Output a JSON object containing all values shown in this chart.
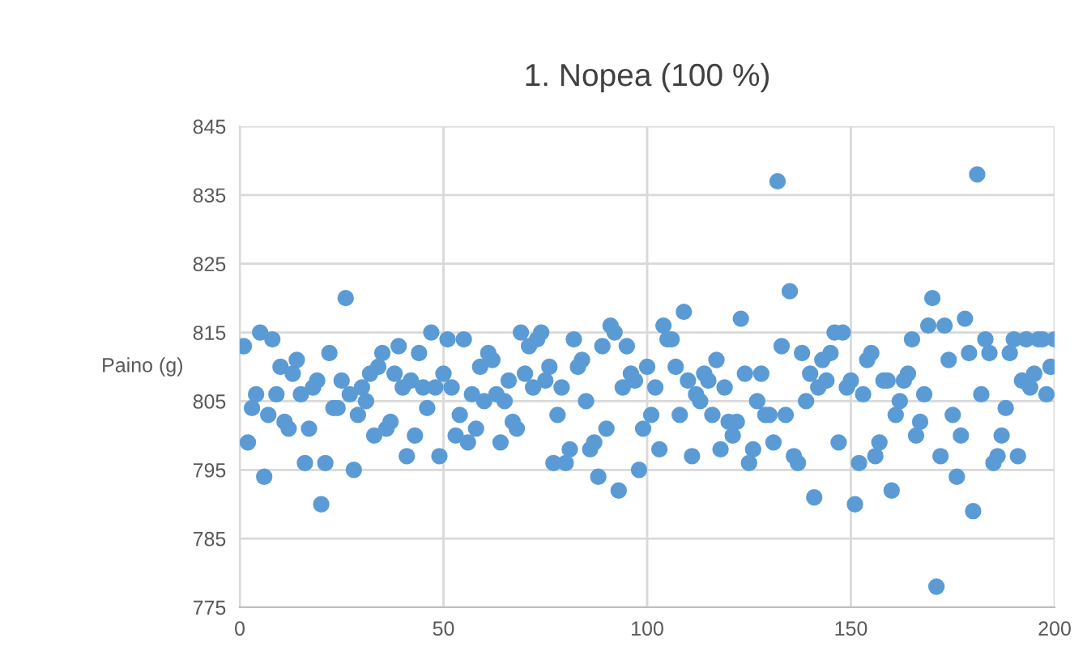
{
  "chart_data": {
    "type": "scatter",
    "title": "1. Nopea (100 %)",
    "ylabel": "Paino (g)",
    "xlim": [
      0,
      200
    ],
    "xticks": [
      0,
      50,
      100,
      150,
      200
    ],
    "ylim": [
      775,
      845
    ],
    "yticks": [
      775,
      785,
      795,
      805,
      815,
      825,
      835,
      845
    ],
    "grid": true,
    "marker": "circle",
    "series": [
      {
        "color": "#5b9bd5",
        "x": [
          1,
          2,
          3,
          4,
          5,
          6,
          7,
          8,
          9,
          10,
          11,
          12,
          13,
          14,
          15,
          16,
          17,
          18,
          19,
          20,
          21,
          22,
          23,
          24,
          25,
          26,
          27,
          28,
          29,
          30,
          31,
          32,
          33,
          34,
          35,
          36,
          37,
          38,
          39,
          40,
          41,
          42,
          43,
          44,
          45,
          46,
          47,
          48,
          49,
          50,
          51,
          52,
          53,
          54,
          55,
          56,
          57,
          58,
          59,
          60,
          61,
          62,
          63,
          64,
          65,
          66,
          67,
          68,
          69,
          70,
          71,
          72,
          73,
          74,
          75,
          76,
          77,
          78,
          79,
          80,
          81,
          82,
          83,
          84,
          85,
          86,
          87,
          88,
          89,
          90,
          91,
          92,
          93,
          94,
          95,
          96,
          97,
          98,
          99,
          100,
          101,
          102,
          103,
          104,
          105,
          106,
          107,
          108,
          109,
          110,
          111,
          112,
          113,
          114,
          115,
          116,
          117,
          118,
          119,
          120,
          121,
          122,
          123,
          124,
          125,
          126,
          127,
          128,
          129,
          130,
          131,
          132,
          133,
          134,
          135,
          136,
          137,
          138,
          139,
          140,
          141,
          142,
          143,
          144,
          145,
          146,
          147,
          148,
          149,
          150,
          151,
          152,
          153,
          154,
          155,
          156,
          157,
          158,
          159,
          160,
          161,
          162,
          163,
          164,
          165,
          166,
          167,
          168,
          169,
          170,
          171,
          172,
          173,
          174,
          175,
          176,
          177,
          178,
          179,
          180,
          181,
          182,
          183,
          184,
          185,
          186,
          187,
          188,
          189,
          190,
          191,
          192,
          193,
          194,
          195,
          196,
          197,
          198,
          199,
          200
        ],
        "values": [
          813,
          799,
          804,
          806,
          815,
          794,
          803,
          814,
          806,
          810,
          802,
          801,
          809,
          811,
          806,
          796,
          801,
          807,
          808,
          790,
          796,
          812,
          804,
          804,
          808,
          820,
          806,
          795,
          803,
          807,
          805,
          809,
          800,
          810,
          812,
          801,
          802,
          809,
          813,
          807,
          797,
          808,
          800,
          812,
          807,
          804,
          815,
          807,
          797,
          809,
          814,
          807,
          800,
          803,
          814,
          799,
          806,
          801,
          810,
          805,
          812,
          811,
          806,
          799,
          805,
          808,
          802,
          801,
          815,
          809,
          813,
          807,
          814,
          815,
          808,
          810,
          796,
          803,
          807,
          796,
          798,
          814,
          810,
          811,
          805,
          798,
          799,
          794,
          813,
          801,
          816,
          815,
          792,
          807,
          813,
          809,
          808,
          795,
          801,
          810,
          803,
          807,
          798,
          816,
          814,
          814,
          810,
          803,
          818,
          808,
          797,
          806,
          805,
          809,
          808,
          803,
          811,
          798,
          807,
          802,
          800,
          802,
          817,
          809,
          796,
          798,
          805,
          809,
          803,
          803,
          799,
          837,
          813,
          803,
          821,
          797,
          796,
          812,
          805,
          809,
          791,
          807,
          811,
          808,
          812,
          815,
          799,
          815,
          807,
          808,
          790,
          796,
          806,
          811,
          812,
          797,
          799,
          808,
          808,
          792,
          803,
          805,
          808,
          809,
          814,
          800,
          802,
          806,
          816,
          820,
          778,
          797,
          816,
          811,
          803,
          794,
          800,
          817,
          812,
          789,
          838,
          806,
          814,
          812,
          796,
          797,
          800,
          804,
          812,
          814,
          797,
          808,
          814,
          807,
          809,
          814,
          814,
          806,
          810,
          814
        ]
      }
    ]
  }
}
